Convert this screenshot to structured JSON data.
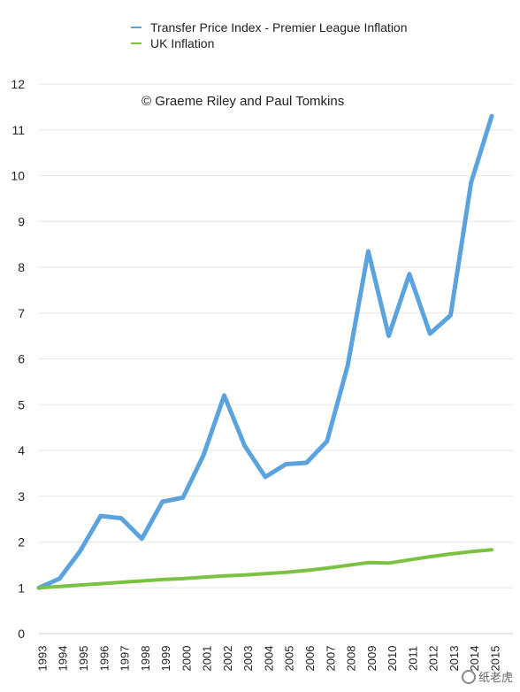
{
  "legend": {
    "series1": "Transfer Price Index - Premier League Inflation",
    "series2": "UK Inflation"
  },
  "annotation": "© Graeme Riley and Paul Tomkins",
  "watermark": "纸老虎",
  "colors": {
    "series1": "#5ba3df",
    "series2": "#7cc242",
    "grid": "#e6e6e6"
  },
  "chart_data": {
    "type": "line",
    "x": [
      "1993",
      "1994",
      "1995",
      "1996",
      "1997",
      "1998",
      "1999",
      "2000",
      "2001",
      "2002",
      "2003",
      "2004",
      "2005",
      "2006",
      "2007",
      "2008",
      "2009",
      "2010",
      "2011",
      "2012",
      "2013",
      "2014",
      "2015"
    ],
    "series": [
      {
        "name": "Transfer Price Index - Premier League Inflation",
        "values": [
          1.0,
          1.2,
          1.8,
          2.57,
          2.52,
          2.07,
          2.88,
          2.97,
          3.9,
          5.2,
          4.1,
          3.42,
          3.7,
          3.73,
          4.2,
          5.85,
          8.35,
          6.5,
          7.85,
          6.55,
          6.95,
          9.85,
          11.3
        ]
      },
      {
        "name": "UK Inflation",
        "values": [
          1.0,
          1.03,
          1.06,
          1.09,
          1.12,
          1.15,
          1.18,
          1.2,
          1.23,
          1.26,
          1.28,
          1.31,
          1.34,
          1.38,
          1.43,
          1.49,
          1.55,
          1.54,
          1.61,
          1.68,
          1.74,
          1.79,
          1.83
        ]
      }
    ],
    "yticks": [
      "0",
      "1",
      "2",
      "3",
      "4",
      "5",
      "6",
      "7",
      "8",
      "9",
      "10",
      "11",
      "12"
    ],
    "ylim": [
      0,
      12
    ],
    "grid": true,
    "legend_position": "top"
  }
}
